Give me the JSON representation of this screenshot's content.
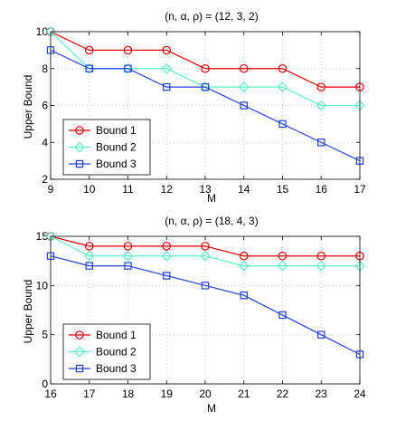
{
  "chart_data": [
    {
      "type": "line",
      "title": "(n, α, ρ) = (12, 3, 2)",
      "xlabel": "M",
      "ylabel": "Upper Bound",
      "x": [
        9,
        10,
        11,
        12,
        13,
        14,
        15,
        16,
        17
      ],
      "xlim": [
        9,
        17
      ],
      "ylim": [
        2,
        10
      ],
      "xticks": [
        9,
        10,
        11,
        12,
        13,
        14,
        15,
        16,
        17
      ],
      "yticks": [
        2,
        4,
        6,
        8,
        10
      ],
      "grid": true,
      "legend_position": "bottom-left",
      "series": [
        {
          "name": "Bound 1",
          "color": "#e00000",
          "marker": "circle",
          "values": [
            10,
            9,
            9,
            9,
            8,
            8,
            8,
            7,
            7
          ]
        },
        {
          "name": "Bound 2",
          "color": "#5ff0c8",
          "marker": "diamond",
          "values": [
            10,
            8,
            8,
            8,
            7,
            7,
            7,
            6,
            6
          ]
        },
        {
          "name": "Bound 3",
          "color": "#2040d8",
          "marker": "square",
          "values": [
            9,
            8,
            8,
            7,
            7,
            6,
            5,
            4,
            3
          ]
        }
      ]
    },
    {
      "type": "line",
      "title": "(n, α, ρ) = (18, 4, 3)",
      "xlabel": "M",
      "ylabel": "Upper Bound",
      "x": [
        16,
        17,
        18,
        19,
        20,
        21,
        22,
        23,
        24
      ],
      "xlim": [
        16,
        24
      ],
      "ylim": [
        0,
        15
      ],
      "xticks": [
        16,
        17,
        18,
        19,
        20,
        21,
        22,
        23,
        24
      ],
      "yticks": [
        0,
        5,
        10,
        15
      ],
      "grid": true,
      "legend_position": "bottom-left",
      "series": [
        {
          "name": "Bound 1",
          "color": "#e00000",
          "marker": "circle",
          "values": [
            15,
            14,
            14,
            14,
            14,
            13,
            13,
            13,
            13
          ]
        },
        {
          "name": "Bound 2",
          "color": "#5ff0c8",
          "marker": "diamond",
          "values": [
            15,
            13,
            13,
            13,
            13,
            12,
            12,
            12,
            12
          ]
        },
        {
          "name": "Bound 3",
          "color": "#2040d8",
          "marker": "square",
          "values": [
            13,
            12,
            12,
            11,
            10,
            9,
            7,
            5,
            3
          ]
        }
      ]
    }
  ]
}
